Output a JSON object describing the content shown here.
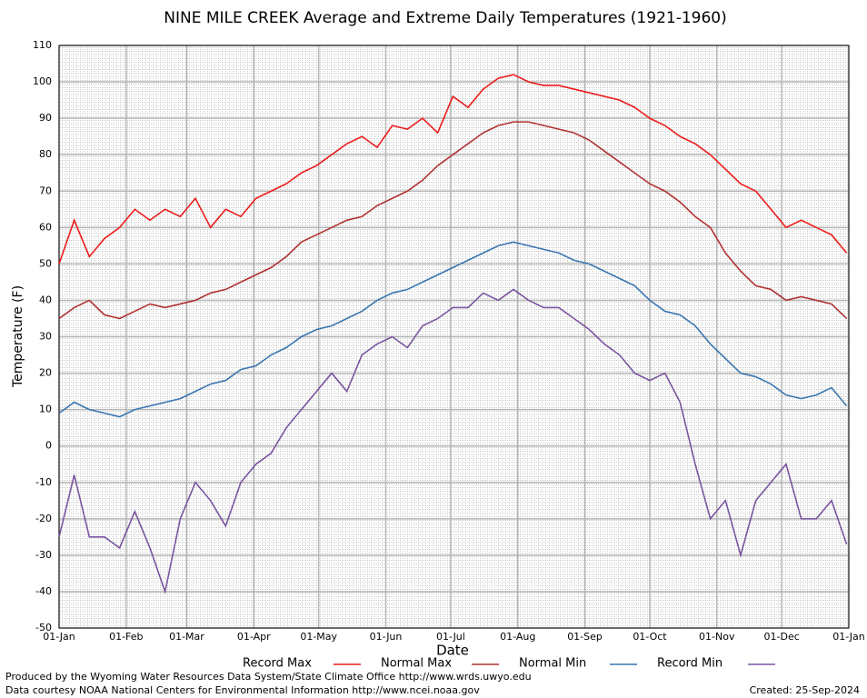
{
  "chart_data": {
    "type": "line",
    "title": "NINE MILE CREEK Average and Extreme Daily Temperatures (1921-1960)",
    "xlabel": "Date",
    "ylabel": "Temperature (F)",
    "x": [
      1,
      8,
      15,
      22,
      29,
      36,
      43,
      50,
      57,
      64,
      71,
      78,
      85,
      92,
      99,
      106,
      113,
      120,
      127,
      134,
      141,
      148,
      155,
      162,
      169,
      176,
      183,
      190,
      197,
      204,
      211,
      218,
      225,
      232,
      239,
      246,
      253,
      260,
      267,
      274,
      281,
      288,
      295,
      302,
      309,
      316,
      323,
      330,
      337,
      344,
      351,
      358,
      365
    ],
    "xlim": [
      1,
      366
    ],
    "xticks": [
      {
        "value": 1,
        "label": "01-Jan"
      },
      {
        "value": 32,
        "label": "01-Feb"
      },
      {
        "value": 60,
        "label": "01-Mar"
      },
      {
        "value": 91,
        "label": "01-Apr"
      },
      {
        "value": 121,
        "label": "01-May"
      },
      {
        "value": 152,
        "label": "01-Jun"
      },
      {
        "value": 182,
        "label": "01-Jul"
      },
      {
        "value": 213,
        "label": "01-Aug"
      },
      {
        "value": 244,
        "label": "01-Sep"
      },
      {
        "value": 274,
        "label": "01-Oct"
      },
      {
        "value": 305,
        "label": "01-Nov"
      },
      {
        "value": 335,
        "label": "01-Dec"
      },
      {
        "value": 366,
        "label": "01-Jan"
      }
    ],
    "ylim": [
      -50,
      110
    ],
    "yticks": [
      -50,
      -40,
      -30,
      -20,
      -10,
      0,
      10,
      20,
      30,
      40,
      50,
      60,
      70,
      80,
      90,
      100,
      110
    ],
    "grid": true,
    "series": [
      {
        "name": "Record Max",
        "color": "#ee1c1c",
        "values": [
          50,
          62,
          52,
          57,
          60,
          65,
          62,
          65,
          63,
          68,
          60,
          65,
          63,
          68,
          70,
          72,
          75,
          77,
          80,
          83,
          85,
          82,
          88,
          87,
          90,
          86,
          96,
          93,
          98,
          101,
          102,
          100,
          99,
          99,
          98,
          97,
          96,
          95,
          93,
          90,
          88,
          85,
          83,
          80,
          76,
          72,
          70,
          65,
          60,
          62,
          60,
          58,
          53
        ]
      },
      {
        "name": "Normal Max",
        "color": "#b03232",
        "values": [
          35,
          38,
          40,
          36,
          35,
          37,
          39,
          38,
          39,
          40,
          42,
          43,
          45,
          47,
          49,
          52,
          56,
          58,
          60,
          62,
          63,
          66,
          68,
          70,
          73,
          77,
          80,
          83,
          86,
          88,
          89,
          89,
          88,
          87,
          86,
          84,
          81,
          78,
          75,
          72,
          70,
          67,
          63,
          60,
          53,
          48,
          44,
          43,
          40,
          41,
          40,
          39,
          35
        ]
      },
      {
        "name": "Normal Min",
        "color": "#3a76b0",
        "values": [
          9,
          12,
          10,
          9,
          8,
          10,
          11,
          12,
          13,
          15,
          17,
          18,
          21,
          22,
          25,
          27,
          30,
          32,
          33,
          35,
          37,
          40,
          42,
          43,
          45,
          47,
          49,
          51,
          53,
          55,
          56,
          55,
          54,
          53,
          51,
          50,
          48,
          46,
          44,
          40,
          37,
          36,
          33,
          28,
          24,
          20,
          19,
          17,
          14,
          13,
          14,
          16,
          11
        ]
      },
      {
        "name": "Record Min",
        "color": "#7a55a0",
        "values": [
          -25,
          -8,
          -25,
          -25,
          -28,
          -18,
          -28,
          -40,
          -20,
          -10,
          -15,
          -22,
          -10,
          -5,
          -2,
          5,
          10,
          15,
          20,
          15,
          25,
          28,
          30,
          27,
          33,
          35,
          38,
          38,
          42,
          40,
          43,
          40,
          38,
          38,
          35,
          32,
          28,
          25,
          20,
          18,
          20,
          12,
          -5,
          -20,
          -15,
          -30,
          -15,
          -10,
          -5,
          -20,
          -20,
          -15,
          -27
        ]
      }
    ],
    "credits": [
      "Produced by the Wyoming Water Resources Data System/State Climate Office http://www.wrds.uwyo.edu",
      "Data courtesy NOAA National Centers for Environmental Information http://www.ncei.noaa.gov"
    ],
    "created": "Created:  25-Sep-2024"
  }
}
